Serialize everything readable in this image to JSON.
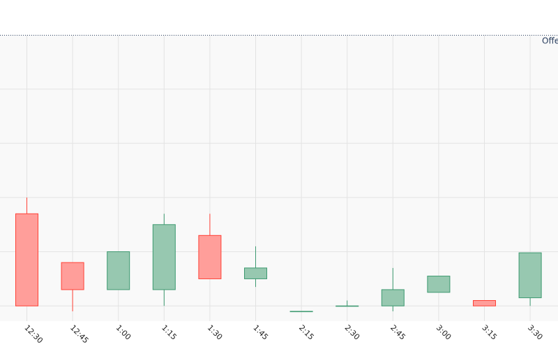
{
  "chart_data": {
    "type": "candlestick",
    "categories": [
      "12:30",
      "12:45",
      "1:00",
      "1:15",
      "1:30",
      "1:45",
      "2:15",
      "2:30",
      "2:45",
      "3:00",
      "3:15",
      "3:30"
    ],
    "candles": [
      {
        "open": 5.7,
        "high": 6.0,
        "low": 4.0,
        "close": 4.0
      },
      {
        "open": 4.8,
        "high": 4.8,
        "low": 3.9,
        "close": 4.3
      },
      {
        "open": 4.3,
        "high": 5.0,
        "low": 4.3,
        "close": 5.0
      },
      {
        "open": 4.3,
        "high": 5.7,
        "low": 4.0,
        "close": 5.5
      },
      {
        "open": 5.3,
        "high": 5.7,
        "low": 4.5,
        "close": 4.5
      },
      {
        "open": 4.5,
        "high": 5.1,
        "low": 4.35,
        "close": 4.7
      },
      {
        "open": 3.9,
        "high": 3.9,
        "low": 3.9,
        "close": 3.9
      },
      {
        "open": 4.0,
        "high": 4.1,
        "low": 4.0,
        "close": 4.0
      },
      {
        "open": 4.0,
        "high": 4.7,
        "low": 3.9,
        "close": 4.3
      },
      {
        "open": 4.25,
        "high": 4.55,
        "low": 4.25,
        "close": 4.55
      },
      {
        "open": 4.1,
        "high": 4.1,
        "low": 4.0,
        "close": 4.0
      },
      {
        "open": 4.15,
        "high": 4.98,
        "low": 4.0,
        "close": 4.98
      }
    ],
    "ylim": [
      3.72,
      9.0
    ],
    "offer_line": {
      "label": "Offer",
      "value": 8.0
    },
    "grid": true,
    "colors": {
      "increasing": "#3d9970",
      "decreasing": "#ff4136",
      "increasing_fill": "#97c8b0",
      "decreasing_fill": "#ff9e9a"
    }
  }
}
